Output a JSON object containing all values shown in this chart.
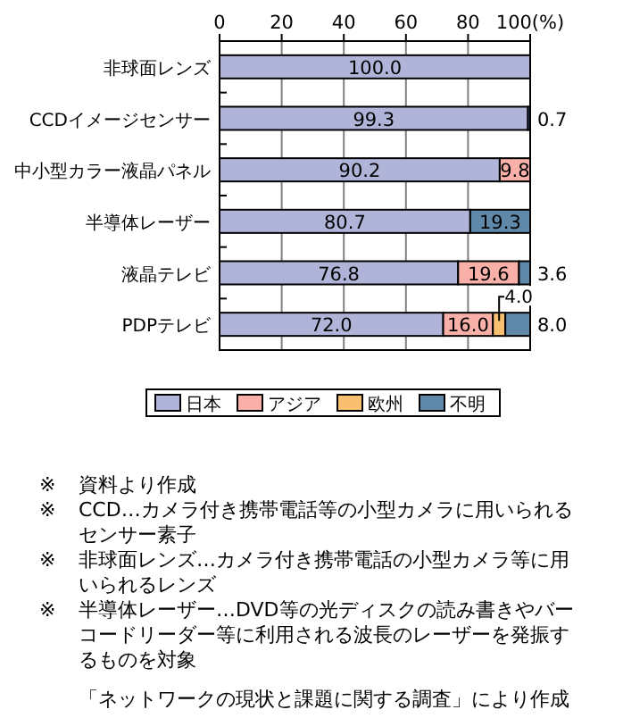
{
  "chart_data": {
    "type": "bar",
    "orientation": "horizontal",
    "stacked": true,
    "categories": [
      "非球面レンズ",
      "CCDイメージセンサー",
      "中小型カラー液晶パネル",
      "半導体レーザー",
      "液晶テレビ",
      "PDPテレビ"
    ],
    "series": [
      {
        "name": "日本",
        "color": "#b0b4d8",
        "values": [
          100.0,
          99.3,
          90.2,
          80.7,
          76.8,
          72.0
        ],
        "value_labels": [
          "100.0",
          "99.3",
          "90.2",
          "80.7",
          "76.8",
          "72.0"
        ]
      },
      {
        "name": "アジア",
        "color": "#f8b0a8",
        "values": [
          0,
          0,
          9.8,
          0,
          19.6,
          16.0
        ],
        "value_labels": [
          null,
          null,
          "9.8",
          null,
          "19.6",
          "16.0"
        ]
      },
      {
        "name": "欧州",
        "color": "#f8c070",
        "values": [
          0,
          0,
          0,
          0,
          0,
          4.0
        ],
        "value_labels": [
          null,
          null,
          null,
          null,
          null,
          "4.0"
        ]
      },
      {
        "name": "不明",
        "color": "#6088a8",
        "values": [
          0,
          0.7,
          0,
          19.3,
          3.6,
          8.0
        ],
        "value_labels": [
          null,
          "0.7",
          null,
          "19.3",
          "3.6",
          "8.0"
        ]
      }
    ],
    "xlim": [
      0,
      100
    ],
    "xticks": [
      0,
      20,
      40,
      60,
      80,
      {
        "value": 100,
        "label": "100(%)"
      }
    ],
    "grid": "x",
    "legend": "bottom",
    "annotations": [
      "※ 資料より作成",
      "※ CCD…カメラ付き携帯電話等の小型カメラに用いられるセンサー素子",
      "※ 非球面レンズ…カメラ付き携帯電話の小型カメラ等に用いられるレンズ",
      "※ 半導体レーザー…DVD等の光ディスクの読み書きやバーコードリーダー等に利用される波長のレーザーを発振するものを対象",
      "「ネットワークの現状と課題に関する調査」により作成"
    ]
  }
}
